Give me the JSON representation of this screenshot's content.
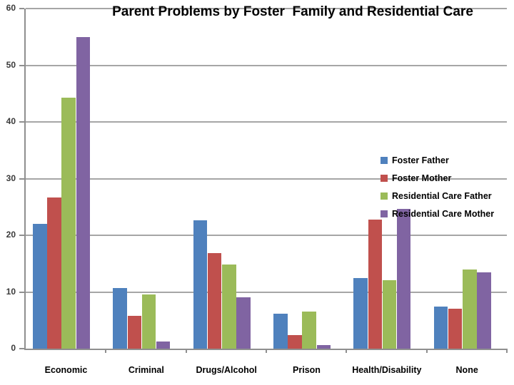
{
  "title": "Parent Problems by Foster  Family and Residential Care",
  "chart_data": {
    "type": "bar",
    "title": "Parent Problems by Foster  Family and Residential Care",
    "categories": [
      "Economic",
      "Criminal",
      "Drugs/Alcohol",
      "Prison",
      "Health/Disability",
      "None"
    ],
    "series": [
      {
        "name": "Foster Father",
        "color": "#4F81BD",
        "values": [
          22.0,
          10.7,
          22.6,
          6.2,
          12.5,
          7.4
        ]
      },
      {
        "name": "Foster Mother",
        "color": "#C0504D",
        "values": [
          26.7,
          5.8,
          16.9,
          2.4,
          22.8,
          7.0
        ]
      },
      {
        "name": "Residential Care Father",
        "color": "#9BBB59",
        "values": [
          44.3,
          9.5,
          14.8,
          6.6,
          12.1,
          14.0
        ]
      },
      {
        "name": "Residential Care Mother",
        "color": "#8064A2",
        "values": [
          55.0,
          1.2,
          9.0,
          0.6,
          24.6,
          13.5
        ]
      }
    ],
    "xlabel": "",
    "ylabel": "",
    "ylim": [
      0,
      60
    ],
    "yticks": [
      0,
      10,
      20,
      30,
      40,
      50,
      60
    ],
    "grid": true,
    "legend_position": "right-inside-plot"
  },
  "colors": {
    "background": "#ffffff",
    "gridline": "#a6a6a6",
    "axis": "#8f8f8f",
    "title_text": "#000000",
    "axis_label_text": "#3a3a3a"
  }
}
